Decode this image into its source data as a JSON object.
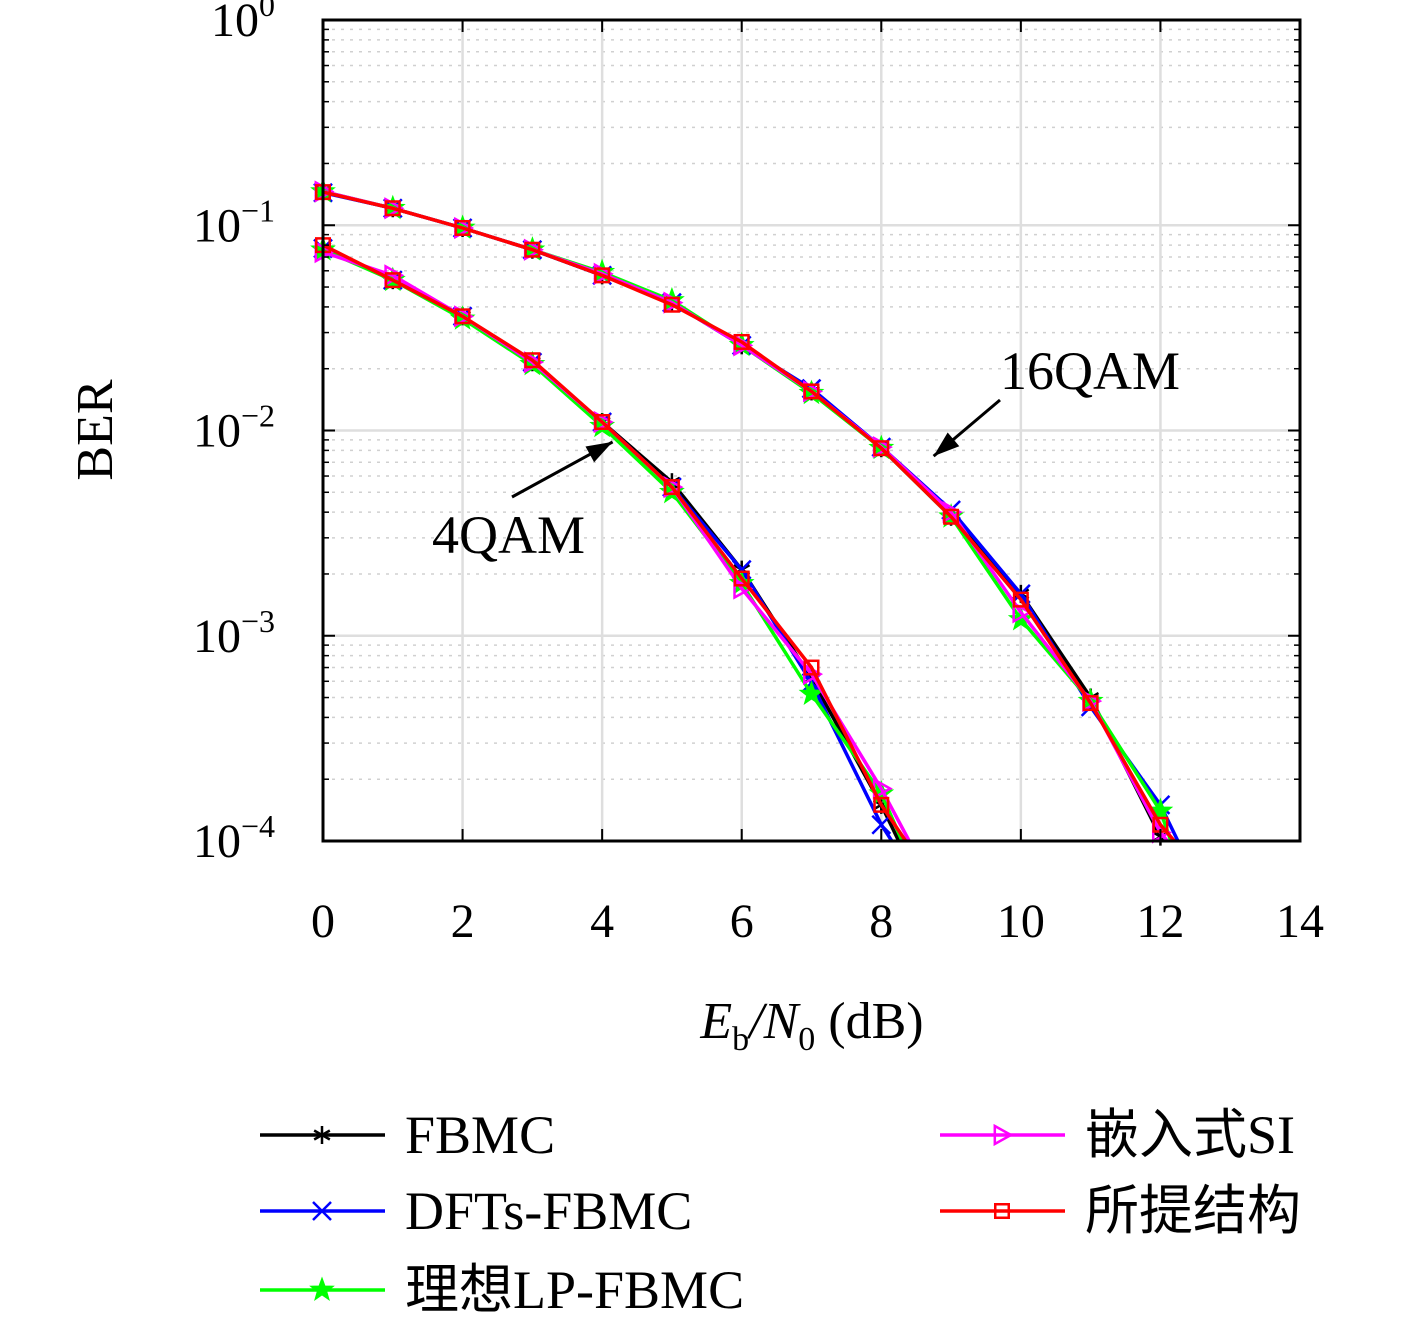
{
  "chart_data": {
    "type": "line",
    "title": "",
    "xlabel": {
      "main": "E",
      "sub1": "b",
      "mid": "/N",
      "sub2": "0",
      "unit": " (dB)"
    },
    "ylabel": "BER",
    "xlim": [
      0,
      14
    ],
    "ylim": [
      0.0001,
      1
    ],
    "yscale": "log",
    "grid": true,
    "x_ticks": [
      "0",
      "2",
      "4",
      "6",
      "8",
      "10",
      "12",
      "14"
    ],
    "y_ticks": [
      {
        "base": "10",
        "exp": "0"
      },
      {
        "base": "10",
        "exp": "−1"
      },
      {
        "base": "10",
        "exp": "−2"
      },
      {
        "base": "10",
        "exp": "−3"
      },
      {
        "base": "10",
        "exp": "−4"
      }
    ],
    "legend_position": "bottom",
    "annotations": [
      {
        "text": "16QAM",
        "arrow_to_x": 8.75,
        "arrow_to_y": 0.0075
      },
      {
        "text": "4QAM",
        "arrow_to_x": 4.15,
        "arrow_to_y": 0.0088
      }
    ],
    "series": [
      {
        "name": "FBMC",
        "color": "#000000",
        "marker": "asterisk",
        "groups": [
          {
            "x": [
              0,
              1,
              2,
              3,
              4,
              5,
              6,
              7,
              8,
              8.25
            ],
            "y": [
              0.078,
              0.054,
              0.036,
              0.0215,
              0.011,
              0.0056,
              0.0021,
              0.00062,
              0.00015,
              0.0001
            ]
          },
          {
            "x": [
              0,
              1,
              2,
              3,
              4,
              5,
              6,
              7,
              8,
              9,
              10,
              11,
              12,
              12.05
            ],
            "y": [
              0.145,
              0.121,
              0.097,
              0.076,
              0.057,
              0.042,
              0.026,
              0.0155,
              0.0082,
              0.0038,
              0.0016,
              0.0005,
              0.000105,
              0.0001
            ]
          }
        ]
      },
      {
        "name": "DFTs-FBMC",
        "color": "#0000ff",
        "marker": "x",
        "groups": [
          {
            "x": [
              0,
              1,
              2,
              3,
              4,
              5,
              6,
              7,
              8,
              8.15
            ],
            "y": [
              0.077,
              0.054,
              0.036,
              0.0215,
              0.011,
              0.0053,
              0.0021,
              0.00059,
              0.00012,
              0.0001
            ]
          },
          {
            "x": [
              0,
              1,
              2,
              3,
              4,
              5,
              6,
              7,
              8,
              9,
              10,
              11,
              12,
              12.25
            ],
            "y": [
              0.144,
              0.121,
              0.097,
              0.076,
              0.057,
              0.042,
              0.026,
              0.016,
              0.0083,
              0.0041,
              0.0016,
              0.00045,
              0.00015,
              0.0001
            ]
          }
        ]
      },
      {
        "name": "理想LP-FBMC",
        "color": "#00ff00",
        "marker": "star",
        "groups": [
          {
            "x": [
              0,
              1,
              2,
              3,
              4,
              5,
              6,
              7,
              8,
              8.3
            ],
            "y": [
              0.076,
              0.054,
              0.035,
              0.021,
              0.0105,
              0.005,
              0.0018,
              0.00052,
              0.00017,
              0.0001
            ]
          },
          {
            "x": [
              0,
              1,
              2,
              3,
              4,
              5,
              6,
              7,
              8,
              9,
              10,
              11,
              12,
              12.15
            ],
            "y": [
              0.146,
              0.121,
              0.097,
              0.076,
              0.059,
              0.043,
              0.026,
              0.0152,
              0.0082,
              0.0038,
              0.0012,
              0.00048,
              0.00014,
              0.0001
            ]
          }
        ]
      },
      {
        "name": "嵌入式SI",
        "color": "#ff00ff",
        "marker": "triangle-right",
        "groups": [
          {
            "x": [
              0,
              1,
              2,
              3,
              4,
              5,
              6,
              7,
              8,
              8.4
            ],
            "y": [
              0.074,
              0.057,
              0.036,
              0.0215,
              0.011,
              0.0053,
              0.0017,
              0.00065,
              0.00018,
              0.0001
            ]
          },
          {
            "x": [
              0,
              1,
              2,
              3,
              4,
              5,
              6,
              7,
              8,
              9,
              10,
              11,
              12,
              12.1
            ],
            "y": [
              0.146,
              0.121,
              0.097,
              0.076,
              0.058,
              0.042,
              0.026,
              0.0155,
              0.0083,
              0.004,
              0.0013,
              0.00048,
              0.00011,
              0.0001
            ]
          }
        ]
      },
      {
        "name": "所提结构",
        "color": "#ff0000",
        "marker": "square",
        "groups": [
          {
            "x": [
              0,
              1,
              2,
              3,
              4,
              5,
              6,
              7,
              8,
              8.35
            ],
            "y": [
              0.08,
              0.054,
              0.036,
              0.022,
              0.011,
              0.0053,
              0.0019,
              0.0007,
              0.00015,
              0.0001
            ]
          },
          {
            "x": [
              0,
              1,
              2,
              3,
              4,
              5,
              6,
              7,
              8,
              9,
              10,
              11,
              12,
              12.2
            ],
            "y": [
              0.145,
              0.121,
              0.097,
              0.076,
              0.057,
              0.041,
              0.027,
              0.0155,
              0.0082,
              0.0038,
              0.0015,
              0.00047,
              0.00012,
              0.0001
            ]
          }
        ]
      }
    ]
  }
}
